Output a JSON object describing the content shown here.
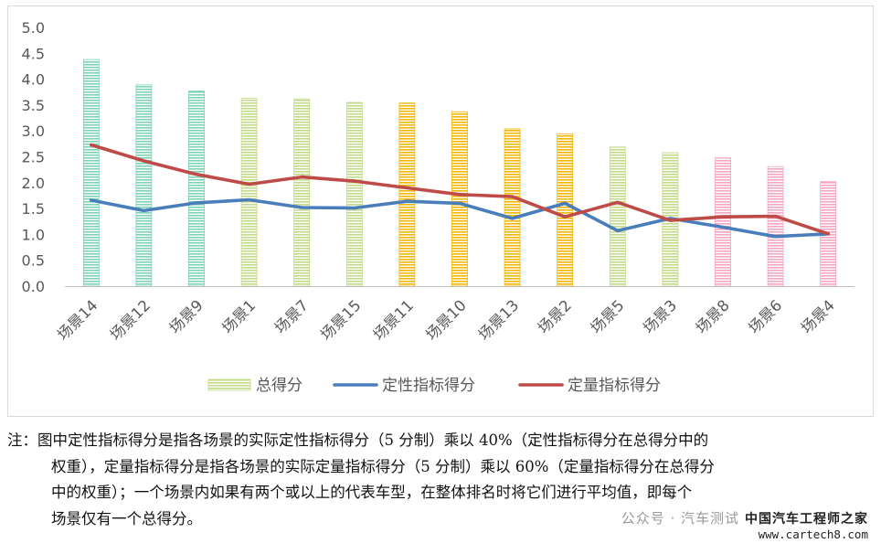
{
  "chart_data": {
    "type": "bar",
    "title": "",
    "xlabel": "",
    "ylabel": "",
    "ylim": [
      0,
      5
    ],
    "yticks": [
      "0.0",
      "0.5",
      "1.0",
      "1.5",
      "2.0",
      "2.5",
      "3.0",
      "3.5",
      "4.0",
      "4.5",
      "5.0"
    ],
    "grid": false,
    "legend_position": "bottom",
    "categories": [
      "场景14",
      "场景12",
      "场景9",
      "场景1",
      "场景7",
      "场景15",
      "场景11",
      "场景10",
      "场景13",
      "场景2",
      "场景5",
      "场景3",
      "场景8",
      "场景6",
      "场景4"
    ],
    "series": [
      {
        "name": "总得分",
        "kind": "bar",
        "values": [
          4.38,
          3.89,
          3.77,
          3.63,
          3.62,
          3.55,
          3.54,
          3.37,
          3.04,
          2.94,
          2.69,
          2.58,
          2.48,
          2.31,
          2.02
        ],
        "bar_colors": [
          "#7dd3b3",
          "#7dd3b3",
          "#7dd3b3",
          "#c3da88",
          "#c3da88",
          "#c3da88",
          "#f2b705",
          "#f2b705",
          "#f2b705",
          "#f2b705",
          "#c3da88",
          "#c3da88",
          "#f3a6c2",
          "#f3a6c2",
          "#f3a6c2"
        ],
        "legend_color": "#c3da88"
      },
      {
        "name": "定性指标得分",
        "kind": "line",
        "color": "#4a7ebb",
        "values": [
          1.66,
          1.46,
          1.61,
          1.67,
          1.52,
          1.51,
          1.64,
          1.6,
          1.31,
          1.6,
          1.07,
          1.31,
          1.14,
          0.96,
          1.01
        ]
      },
      {
        "name": "定量指标得分",
        "kind": "line",
        "color": "#be4b48",
        "values": [
          2.73,
          2.42,
          2.16,
          1.97,
          2.11,
          2.03,
          1.9,
          1.77,
          1.73,
          1.34,
          1.62,
          1.27,
          1.34,
          1.35,
          1.01
        ]
      }
    ]
  },
  "note": {
    "lines": [
      "注：图中定性指标得分是指各场景的实际定性指标得分（5 分制）乘以 40%（定性指标得分在总得分中的",
      "权重），定量指标得分是指各场景的实际定量指标得分（5 分制）乘以 60%（定量指标得分在总得分",
      "中的权重）；一个场景内如果有两个或以上的代表车型，在整体排名时将它们进行平均值，即每个",
      "场景仅有一个总得分。"
    ]
  },
  "watermark": {
    "wechat": "公众号 · 汽车测试",
    "site_name": "中国汽车工程师之家",
    "url": "www.cartech8.com"
  }
}
